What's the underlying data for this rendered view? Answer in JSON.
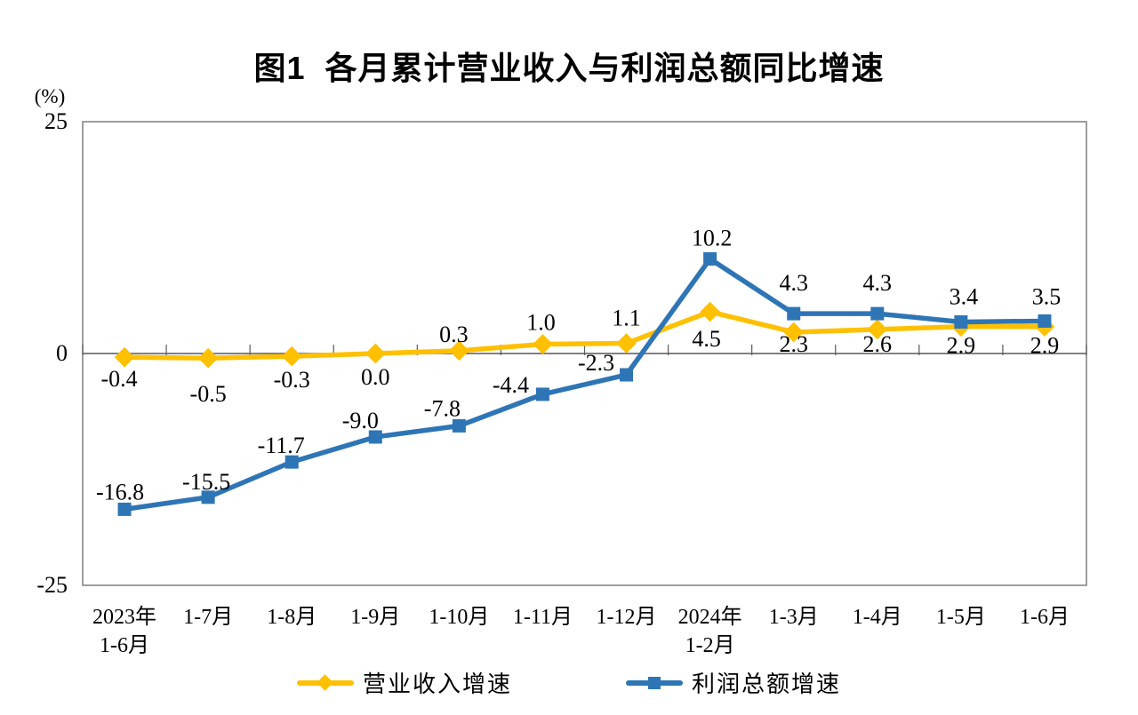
{
  "chart_data": {
    "type": "line",
    "title": "图1  各月累计营业收入与利润总额同比增速",
    "unit_label": "(%)",
    "y_ticks": [
      "25",
      "0",
      "-25"
    ],
    "ylim": [
      -25,
      25
    ],
    "grid": "zero-line-only",
    "legend_position": "bottom",
    "categories": [
      "2023年\n1-6月",
      "1-7月",
      "1-8月",
      "1-9月",
      "1-10月",
      "1-11月",
      "1-12月",
      "2024年\n1-2月",
      "1-3月",
      "1-4月",
      "1-5月",
      "1-6月"
    ],
    "series": [
      {
        "id": "operating-revenue-growth",
        "name": "营业收入增速",
        "color": "#FFC000",
        "marker": "diamond",
        "values": [
          -0.4,
          -0.5,
          -0.3,
          0.0,
          0.3,
          1.0,
          1.1,
          4.5,
          2.3,
          2.6,
          2.9,
          2.9
        ]
      },
      {
        "id": "total-profit-growth",
        "name": "利润总额增速",
        "color": "#2E75B6",
        "marker": "square",
        "values": [
          -16.8,
          -15.5,
          -11.7,
          -9.0,
          -7.8,
          -4.4,
          -2.3,
          10.2,
          4.3,
          4.3,
          3.4,
          3.5
        ]
      }
    ]
  }
}
